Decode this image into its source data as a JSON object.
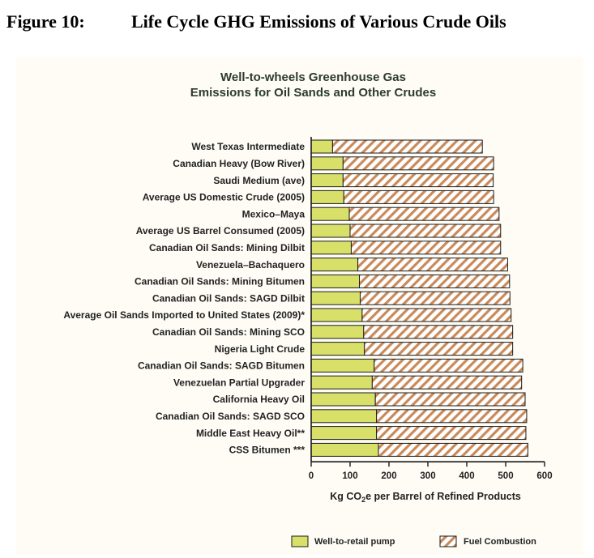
{
  "figure": {
    "number": "Figure 10:",
    "title": "Life Cycle GHG Emissions of Various Crude Oils"
  },
  "chart_data": {
    "type": "bar",
    "orientation": "horizontal",
    "stacked": true,
    "title_line1": "Well-to-wheels Greenhouse Gas",
    "title_line2": "Emissions for Oil Sands and Other Crudes",
    "xlabel_prefix": "Kg CO",
    "xlabel_sub": "2",
    "xlabel_suffix": "e per Barrel of Refined Products",
    "xlim": [
      0,
      600
    ],
    "xticks": [
      "0",
      "100",
      "200",
      "300",
      "400",
      "500",
      "600"
    ],
    "categories": [
      "West Texas Intermediate",
      "Canadian Heavy (Bow River)",
      "Saudi Medium (ave)",
      "Average US Domestic Crude (2005)",
      "Mexico–Maya",
      "Average US Barrel Consumed (2005)",
      "Canadian Oil Sands: Mining Dilbit",
      "Venezuela–Bachaquero",
      "Canadian Oil Sands: Mining Bitumen",
      "Canadian Oil Sands: SAGD Dilbit",
      "Average Oil Sands Imported to United States (2009)*",
      "Canadian Oil Sands: Mining SCO",
      "Nigeria Light Crude",
      "Canadian Oil Sands: SAGD Bitumen",
      "Venezuelan Partial Upgrader",
      "California Heavy Oil",
      "Canadian Oil Sands: SAGD SCO",
      "Middle East Heavy Oil**",
      "CSS  Bitumen ***"
    ],
    "series": [
      {
        "name": "Well-to-retail pump",
        "color": "#d8e06a",
        "values": [
          55,
          82,
          82,
          84,
          98,
          100,
          103,
          120,
          124,
          126,
          131,
          135,
          137,
          162,
          157,
          165,
          168,
          168,
          173
        ]
      },
      {
        "name": "Fuel Combustion",
        "color": "#c98a5a",
        "pattern": "diagonal-hatch",
        "values": [
          385,
          387,
          386,
          385,
          385,
          387,
          384,
          385,
          386,
          385,
          383,
          383,
          381,
          382,
          384,
          385,
          386,
          384,
          384
        ]
      }
    ],
    "legend_position": "bottom-right",
    "grid": false
  }
}
